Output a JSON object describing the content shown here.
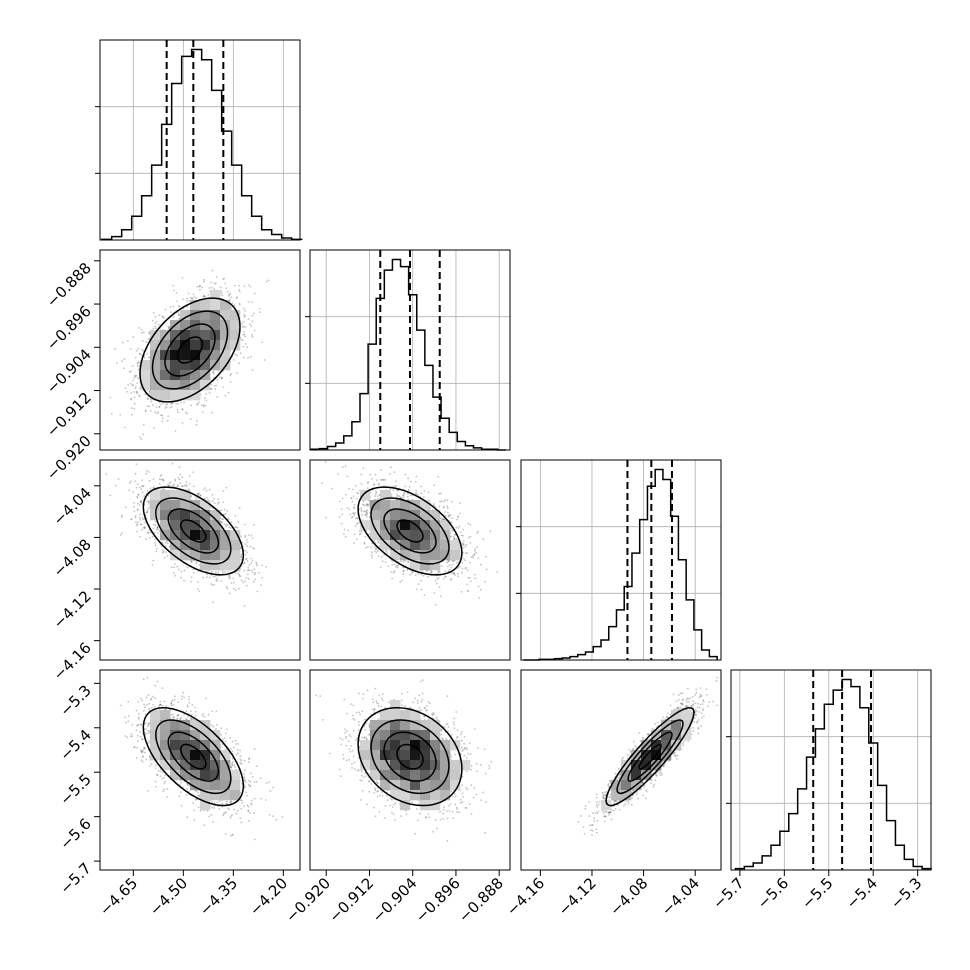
{
  "chart_data": {
    "type": "corner",
    "title": "",
    "parameters": [
      {
        "range": [
          -4.75,
          -4.15
        ],
        "ticks": [
          -4.65,
          -4.5,
          -4.35,
          -4.2
        ],
        "tick_labels": [
          "−4.65",
          "−4.50",
          "−4.35",
          "−4.20"
        ],
        "quantiles": [
          -4.55,
          -4.47,
          -4.38
        ],
        "hist_centers": [
          -4.73,
          -4.7,
          -4.67,
          -4.64,
          -4.61,
          -4.58,
          -4.55,
          -4.52,
          -4.49,
          -4.46,
          -4.43,
          -4.4,
          -4.37,
          -4.34,
          -4.31,
          -4.28,
          -4.25,
          -4.22,
          -4.19,
          -4.16
        ],
        "hist_counts": [
          1,
          5,
          15,
          35,
          65,
          110,
          170,
          230,
          270,
          280,
          265,
          220,
          160,
          110,
          65,
          35,
          15,
          8,
          3,
          1
        ]
      },
      {
        "range": [
          -0.923,
          -0.886
        ],
        "ticks": [
          -0.92,
          -0.912,
          -0.904,
          -0.896,
          -0.888
        ],
        "tick_labels": [
          "−0.920",
          "−0.912",
          "−0.904",
          "−0.896",
          "−0.888"
        ],
        "quantiles": [
          -0.91,
          -0.9045,
          -0.899
        ],
        "hist_centers": [
          -0.922,
          -0.9205,
          -0.919,
          -0.9175,
          -0.916,
          -0.9145,
          -0.913,
          -0.9115,
          -0.91,
          -0.9085,
          -0.907,
          -0.9055,
          -0.904,
          -0.9025,
          -0.901,
          -0.8995,
          -0.898,
          -0.8965,
          -0.895,
          -0.8935,
          -0.892,
          -0.8905,
          -0.889,
          -0.8875
        ],
        "hist_counts": [
          1,
          2,
          5,
          10,
          20,
          40,
          80,
          150,
          215,
          255,
          270,
          260,
          220,
          170,
          120,
          75,
          45,
          25,
          12,
          6,
          3,
          1,
          1,
          0
        ]
      },
      {
        "range": [
          -4.175,
          -4.02
        ],
        "ticks": [
          -4.16,
          -4.12,
          -4.08,
          -4.04
        ],
        "tick_labels": [
          "−4.16",
          "−4.12",
          "−4.08",
          "−4.04"
        ],
        "quantiles": [
          -4.0925,
          -4.074,
          -4.058
        ],
        "hist_centers": [
          -4.17,
          -4.164,
          -4.158,
          -4.152,
          -4.146,
          -4.14,
          -4.134,
          -4.128,
          -4.122,
          -4.116,
          -4.11,
          -4.104,
          -4.098,
          -4.092,
          -4.086,
          -4.08,
          -4.074,
          -4.068,
          -4.062,
          -4.056,
          -4.05,
          -4.044,
          -4.038,
          -4.032,
          -4.026
        ],
        "hist_counts": [
          0,
          0,
          1,
          1,
          2,
          3,
          5,
          8,
          12,
          20,
          30,
          50,
          75,
          110,
          160,
          210,
          260,
          285,
          270,
          215,
          150,
          90,
          45,
          15,
          5
        ]
      },
      {
        "range": [
          -5.72,
          -5.27
        ],
        "ticks": [
          -5.7,
          -5.6,
          -5.5,
          -5.4,
          -5.3
        ],
        "tick_labels": [
          "−5.7",
          "−5.6",
          "−5.5",
          "−5.4",
          "−5.3"
        ],
        "quantiles": [
          -5.535,
          -5.47,
          -5.405
        ],
        "hist_centers": [
          -5.7,
          -5.68,
          -5.66,
          -5.64,
          -5.62,
          -5.6,
          -5.58,
          -5.56,
          -5.54,
          -5.52,
          -5.5,
          -5.48,
          -5.46,
          -5.44,
          -5.42,
          -5.4,
          -5.38,
          -5.36,
          -5.34,
          -5.32,
          -5.3,
          -5.28
        ],
        "hist_counts": [
          2,
          5,
          10,
          20,
          35,
          55,
          80,
          115,
          160,
          200,
          235,
          255,
          270,
          260,
          230,
          180,
          120,
          70,
          35,
          15,
          5,
          2
        ]
      }
    ],
    "pairs": [
      {
        "x": 0,
        "y": 1,
        "mean": [
          -4.48,
          -0.9045
        ],
        "sd": [
          0.075,
          0.0048
        ],
        "corr": 0.45
      },
      {
        "x": 0,
        "y": 2,
        "mean": [
          -4.47,
          -4.075
        ],
        "sd": [
          0.075,
          0.017
        ],
        "corr": -0.55
      },
      {
        "x": 1,
        "y": 2,
        "mean": [
          -0.9045,
          -4.075
        ],
        "sd": [
          0.0048,
          0.017
        ],
        "corr": -0.5
      },
      {
        "x": 0,
        "y": 3,
        "mean": [
          -4.47,
          -5.465
        ],
        "sd": [
          0.075,
          0.055
        ],
        "corr": -0.6
      },
      {
        "x": 1,
        "y": 3,
        "mean": [
          -0.9045,
          -5.465
        ],
        "sd": [
          0.0048,
          0.055
        ],
        "corr": -0.25
      },
      {
        "x": 2,
        "y": 3,
        "mean": [
          -4.075,
          -5.465
        ],
        "sd": [
          0.017,
          0.055
        ],
        "corr": 0.9
      }
    ]
  }
}
